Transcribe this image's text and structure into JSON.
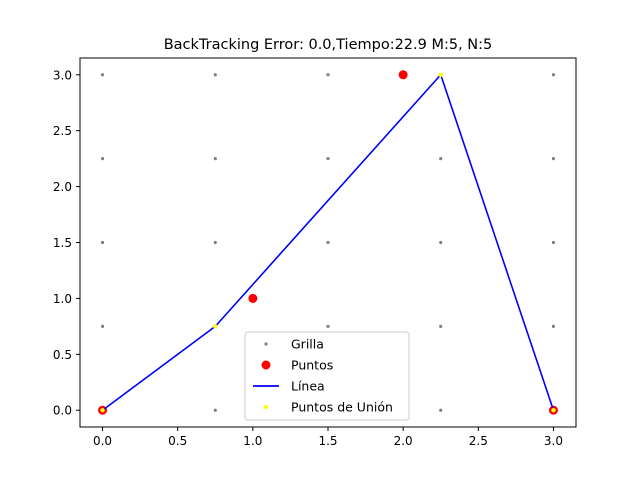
{
  "chart_data": {
    "type": "scatter",
    "title": "BackTracking Error: 0.0,Tiempo:22.9  M:5, N:5",
    "xlabel": "",
    "ylabel": "",
    "xlim": [
      -0.15,
      3.15
    ],
    "ylim": [
      -0.15,
      3.15
    ],
    "xticks": [
      0.0,
      0.5,
      1.0,
      1.5,
      2.0,
      2.5,
      3.0
    ],
    "xtick_labels": [
      "0.0",
      "0.5",
      "1.0",
      "1.5",
      "2.0",
      "2.5",
      "3.0"
    ],
    "yticks": [
      0.0,
      0.5,
      1.0,
      1.5,
      2.0,
      2.5,
      3.0
    ],
    "ytick_labels": [
      "0.0",
      "0.5",
      "1.0",
      "1.5",
      "2.0",
      "2.5",
      "3.0"
    ],
    "grid": false,
    "legend_position": "bottom-center",
    "series": [
      {
        "name": "Grilla",
        "kind": "scatter",
        "color": "#808080",
        "x": [
          0,
          0.75,
          1.5,
          2.25,
          3,
          0,
          0.75,
          1.5,
          2.25,
          3,
          0,
          0.75,
          1.5,
          2.25,
          3,
          0,
          0.75,
          1.5,
          2.25,
          3,
          0,
          0.75,
          1.5,
          2.25,
          3
        ],
        "y": [
          0,
          0,
          0,
          0,
          0,
          0.75,
          0.75,
          0.75,
          0.75,
          0.75,
          1.5,
          1.5,
          1.5,
          1.5,
          1.5,
          2.25,
          2.25,
          2.25,
          2.25,
          2.25,
          3,
          3,
          3,
          3,
          3
        ]
      },
      {
        "name": "Puntos",
        "kind": "scatter",
        "color": "#ff0000",
        "x": [
          0,
          1,
          2,
          3
        ],
        "y": [
          0,
          1,
          3,
          0
        ]
      },
      {
        "name": "Línea",
        "kind": "line",
        "color": "#0000ff",
        "x": [
          0,
          0.75,
          2.25,
          3
        ],
        "y": [
          0,
          0.75,
          3,
          0
        ]
      },
      {
        "name": "Puntos de Unión",
        "kind": "scatter",
        "color": "#ffff00",
        "x": [
          0,
          0.75,
          2.25,
          3
        ],
        "y": [
          0,
          0.75,
          3,
          0
        ]
      }
    ]
  }
}
